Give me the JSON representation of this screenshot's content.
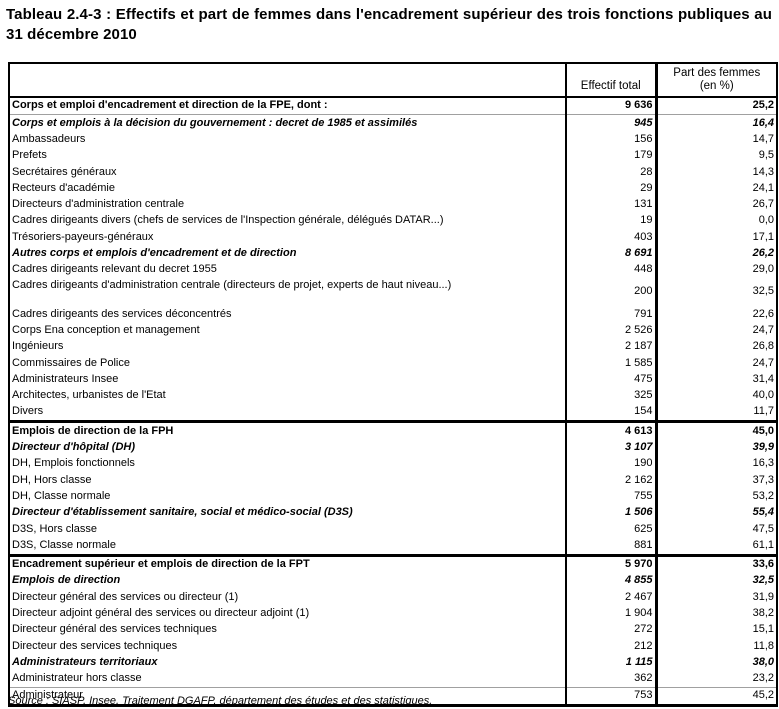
{
  "page": {
    "title": "Tableau 2.4-3 : Effectifs et part de femmes dans l'encadrement supérieur des trois fonctions publiques au 31 décembre 2010",
    "source": "Source : SIASP, Insee. Traitement DGAFP, département des études et des statistiques."
  },
  "table": {
    "headers": {
      "label_col": "",
      "effectif_col": "Effectif total",
      "part_col_line1": "Part des femmes",
      "part_col_line2": "(en %)"
    },
    "rows": [
      {
        "label": "Corps et emploi d'encadrement et direction de la FPE, dont :",
        "total": "9 636",
        "pct": "25,2",
        "style": "bold",
        "border": "none",
        "tall": false
      },
      {
        "label": "Corps et emplois à la décision du gouvernement : decret de 1985 et assimilés",
        "total": "945",
        "pct": "16,4",
        "style": "bolditalic",
        "border": "thin",
        "tall": false
      },
      {
        "label": "Ambassadeurs",
        "total": "156",
        "pct": "14,7",
        "style": "normal",
        "border": "none",
        "tall": false
      },
      {
        "label": "Prefets",
        "total": "179",
        "pct": "9,5",
        "style": "normal",
        "border": "none",
        "tall": false
      },
      {
        "label": "Secrétaires généraux",
        "total": "28",
        "pct": "14,3",
        "style": "normal",
        "border": "none",
        "tall": false
      },
      {
        "label": "Recteurs d'académie",
        "total": "29",
        "pct": "24,1",
        "style": "normal",
        "border": "none",
        "tall": false
      },
      {
        "label": "Directeurs d'administration centrale",
        "total": "131",
        "pct": "26,7",
        "style": "normal",
        "border": "none",
        "tall": false
      },
      {
        "label": "Cadres dirigeants divers (chefs de services de l'Inspection générale, délégués DATAR...)",
        "total": "19",
        "pct": "0,0",
        "style": "normal",
        "border": "none",
        "tall": false
      },
      {
        "label": "Trésoriers-payeurs-généraux",
        "total": "403",
        "pct": "17,1",
        "style": "normal",
        "border": "none",
        "tall": false
      },
      {
        "label": "Autres corps et emplois d'encadrement et de direction",
        "total": "8 691",
        "pct": "26,2",
        "style": "bolditalic",
        "border": "none",
        "tall": false
      },
      {
        "label": "Cadres dirigeants relevant du decret 1955",
        "total": "448",
        "pct": "29,0",
        "style": "normal",
        "border": "none",
        "tall": false
      },
      {
        "label": "Cadres dirigeants d'administration centrale (directeurs de projet, experts de haut niveau...)",
        "total": "200",
        "pct": "32,5",
        "style": "normal",
        "border": "none",
        "tall": true
      },
      {
        "label": "Cadres dirigeants des services déconcentrés",
        "total": "791",
        "pct": "22,6",
        "style": "normal",
        "border": "none",
        "tall": false
      },
      {
        "label": "Corps Ena conception et management",
        "total": "2 526",
        "pct": "24,7",
        "style": "normal",
        "border": "none",
        "tall": false
      },
      {
        "label": "Ingénieurs",
        "total": "2 187",
        "pct": "26,8",
        "style": "normal",
        "border": "none",
        "tall": false
      },
      {
        "label": "Commissaires de Police",
        "total": "1 585",
        "pct": "24,7",
        "style": "normal",
        "border": "none",
        "tall": false
      },
      {
        "label": "Administrateurs Insee",
        "total": "475",
        "pct": "31,4",
        "style": "normal",
        "border": "none",
        "tall": false
      },
      {
        "label": "Architectes, urbanistes de l'Etat",
        "total": "325",
        "pct": "40,0",
        "style": "normal",
        "border": "none",
        "tall": false
      },
      {
        "label": "Divers",
        "total": "154",
        "pct": "11,7",
        "style": "normal",
        "border": "none",
        "tall": false
      },
      {
        "label": "Emplois de direction de la FPH",
        "total": "4 613",
        "pct": "45,0",
        "style": "bold",
        "border": "thick",
        "tall": false
      },
      {
        "label": "Directeur d'hôpital (DH)",
        "total": "3 107",
        "pct": "39,9",
        "style": "bolditalic",
        "border": "none",
        "tall": false
      },
      {
        "label": "DH, Emplois fonctionnels",
        "total": "190",
        "pct": "16,3",
        "style": "normal",
        "border": "none",
        "tall": false
      },
      {
        "label": "DH, Hors classe",
        "total": "2 162",
        "pct": "37,3",
        "style": "normal",
        "border": "none",
        "tall": false
      },
      {
        "label": "DH, Classe normale",
        "total": "755",
        "pct": "53,2",
        "style": "normal",
        "border": "none",
        "tall": false
      },
      {
        "label": "Directeur d'établissement sanitaire, social et médico-social (D3S)",
        "total": "1 506",
        "pct": "55,4",
        "style": "bolditalic",
        "border": "none",
        "tall": false
      },
      {
        "label": "D3S, Hors classe",
        "total": "625",
        "pct": "47,5",
        "style": "normal",
        "border": "none",
        "tall": false
      },
      {
        "label": "D3S, Classe normale",
        "total": "881",
        "pct": "61,1",
        "style": "normal",
        "border": "none",
        "tall": false
      },
      {
        "label": "Encadrement supérieur et emplois de direction de la FPT",
        "total": "5 970",
        "pct": "33,6",
        "style": "bold",
        "border": "thick",
        "tall": false
      },
      {
        "label": "Emplois de direction",
        "total": "4 855",
        "pct": "32,5",
        "style": "bolditalic",
        "border": "none",
        "tall": false
      },
      {
        "label": "Directeur général des services ou directeur (1)",
        "total": "2 467",
        "pct": "31,9",
        "style": "normal",
        "border": "none",
        "tall": false
      },
      {
        "label": "Directeur adjoint général des services ou directeur adjoint (1)",
        "total": "1 904",
        "pct": "38,2",
        "style": "normal",
        "border": "none",
        "tall": false
      },
      {
        "label": "Directeur général des services techniques",
        "total": "272",
        "pct": "15,1",
        "style": "normal",
        "border": "none",
        "tall": false
      },
      {
        "label": "Directeur des services techniques",
        "total": "212",
        "pct": "11,8",
        "style": "normal",
        "border": "none",
        "tall": false
      },
      {
        "label": "Administrateurs territoriaux",
        "total": "1 115",
        "pct": "38,0",
        "style": "bolditalic",
        "border": "none",
        "tall": false
      },
      {
        "label": "Administrateur hors classe",
        "total": "362",
        "pct": "23,2",
        "style": "normal",
        "border": "none",
        "tall": false
      },
      {
        "label": "Administrateur",
        "total": "753",
        "pct": "45,2",
        "style": "normal",
        "border": "thin",
        "tall": false
      }
    ]
  }
}
